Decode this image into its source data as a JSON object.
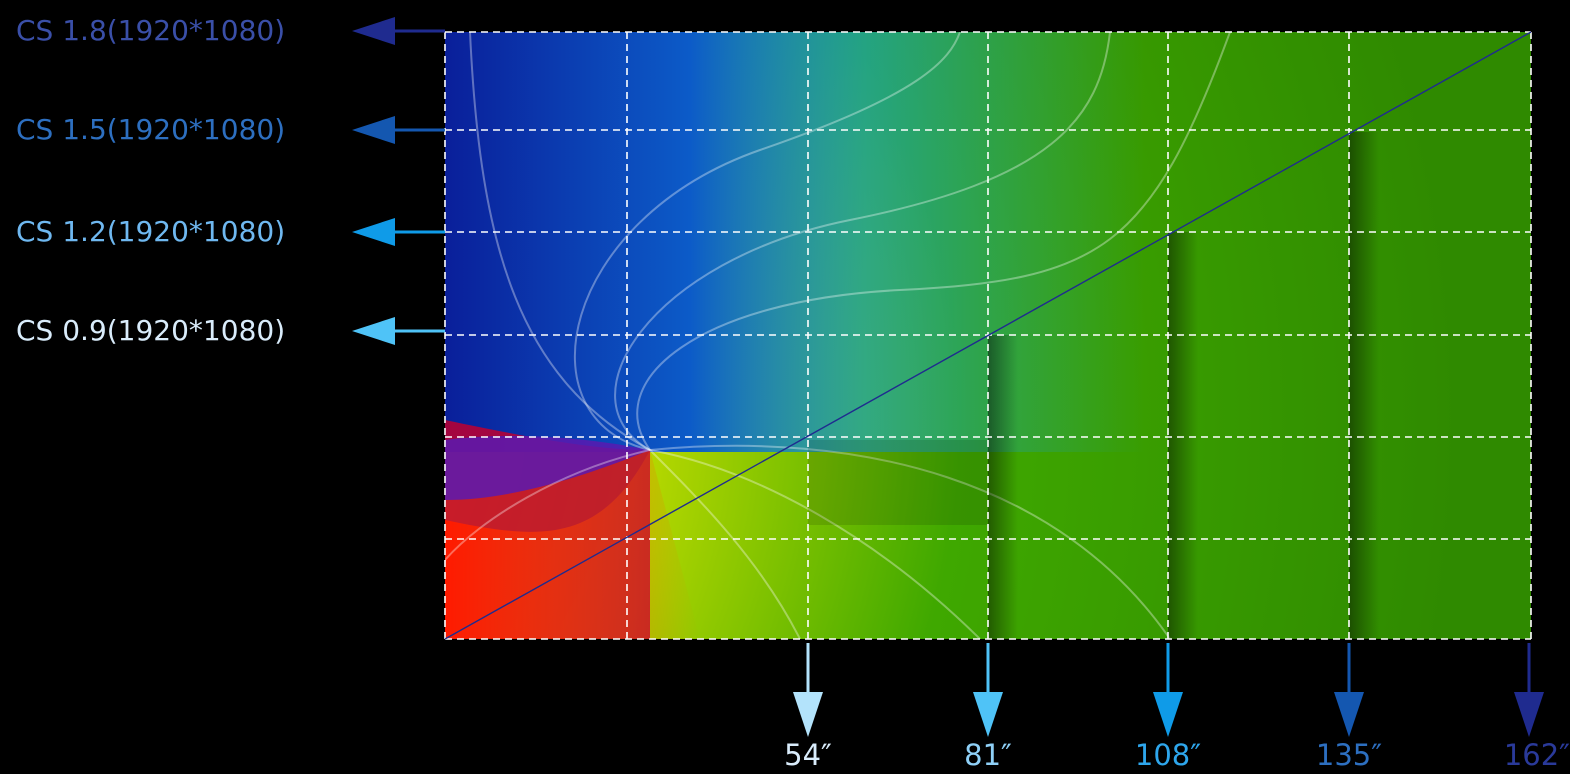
{
  "resolution_rows": [
    {
      "label": "CS 1.8(1920*1080)",
      "color": "#3a4fa8",
      "arrow_color": "#1f2b8f"
    },
    {
      "label": "CS 1.5(1920*1080)",
      "color": "#2d6fc0",
      "arrow_color": "#1457b0"
    },
    {
      "label": "CS 1.2(1920*1080)",
      "color": "#6fb8f0",
      "arrow_color": "#0f9be8"
    },
    {
      "label": "CS 0.9(1920*1080)",
      "color": "#d9ecfb",
      "arrow_color": "#4fc3f7"
    }
  ],
  "screen_sizes": [
    {
      "label": "54″",
      "color": "#d9ecfb",
      "arrow_color": "#b3e3fb"
    },
    {
      "label": "81″",
      "color": "#8fd0f7",
      "arrow_color": "#4fc3f7"
    },
    {
      "label": "108″",
      "color": "#2ea6ec",
      "arrow_color": "#0f9be8"
    },
    {
      "label": "135″",
      "color": "#2d6fc0",
      "arrow_color": "#1457b0"
    },
    {
      "label": "162″",
      "color": "#2a3a9a",
      "arrow_color": "#1f2b8f"
    }
  ],
  "grid": {
    "columns": 6,
    "rows": 6
  }
}
